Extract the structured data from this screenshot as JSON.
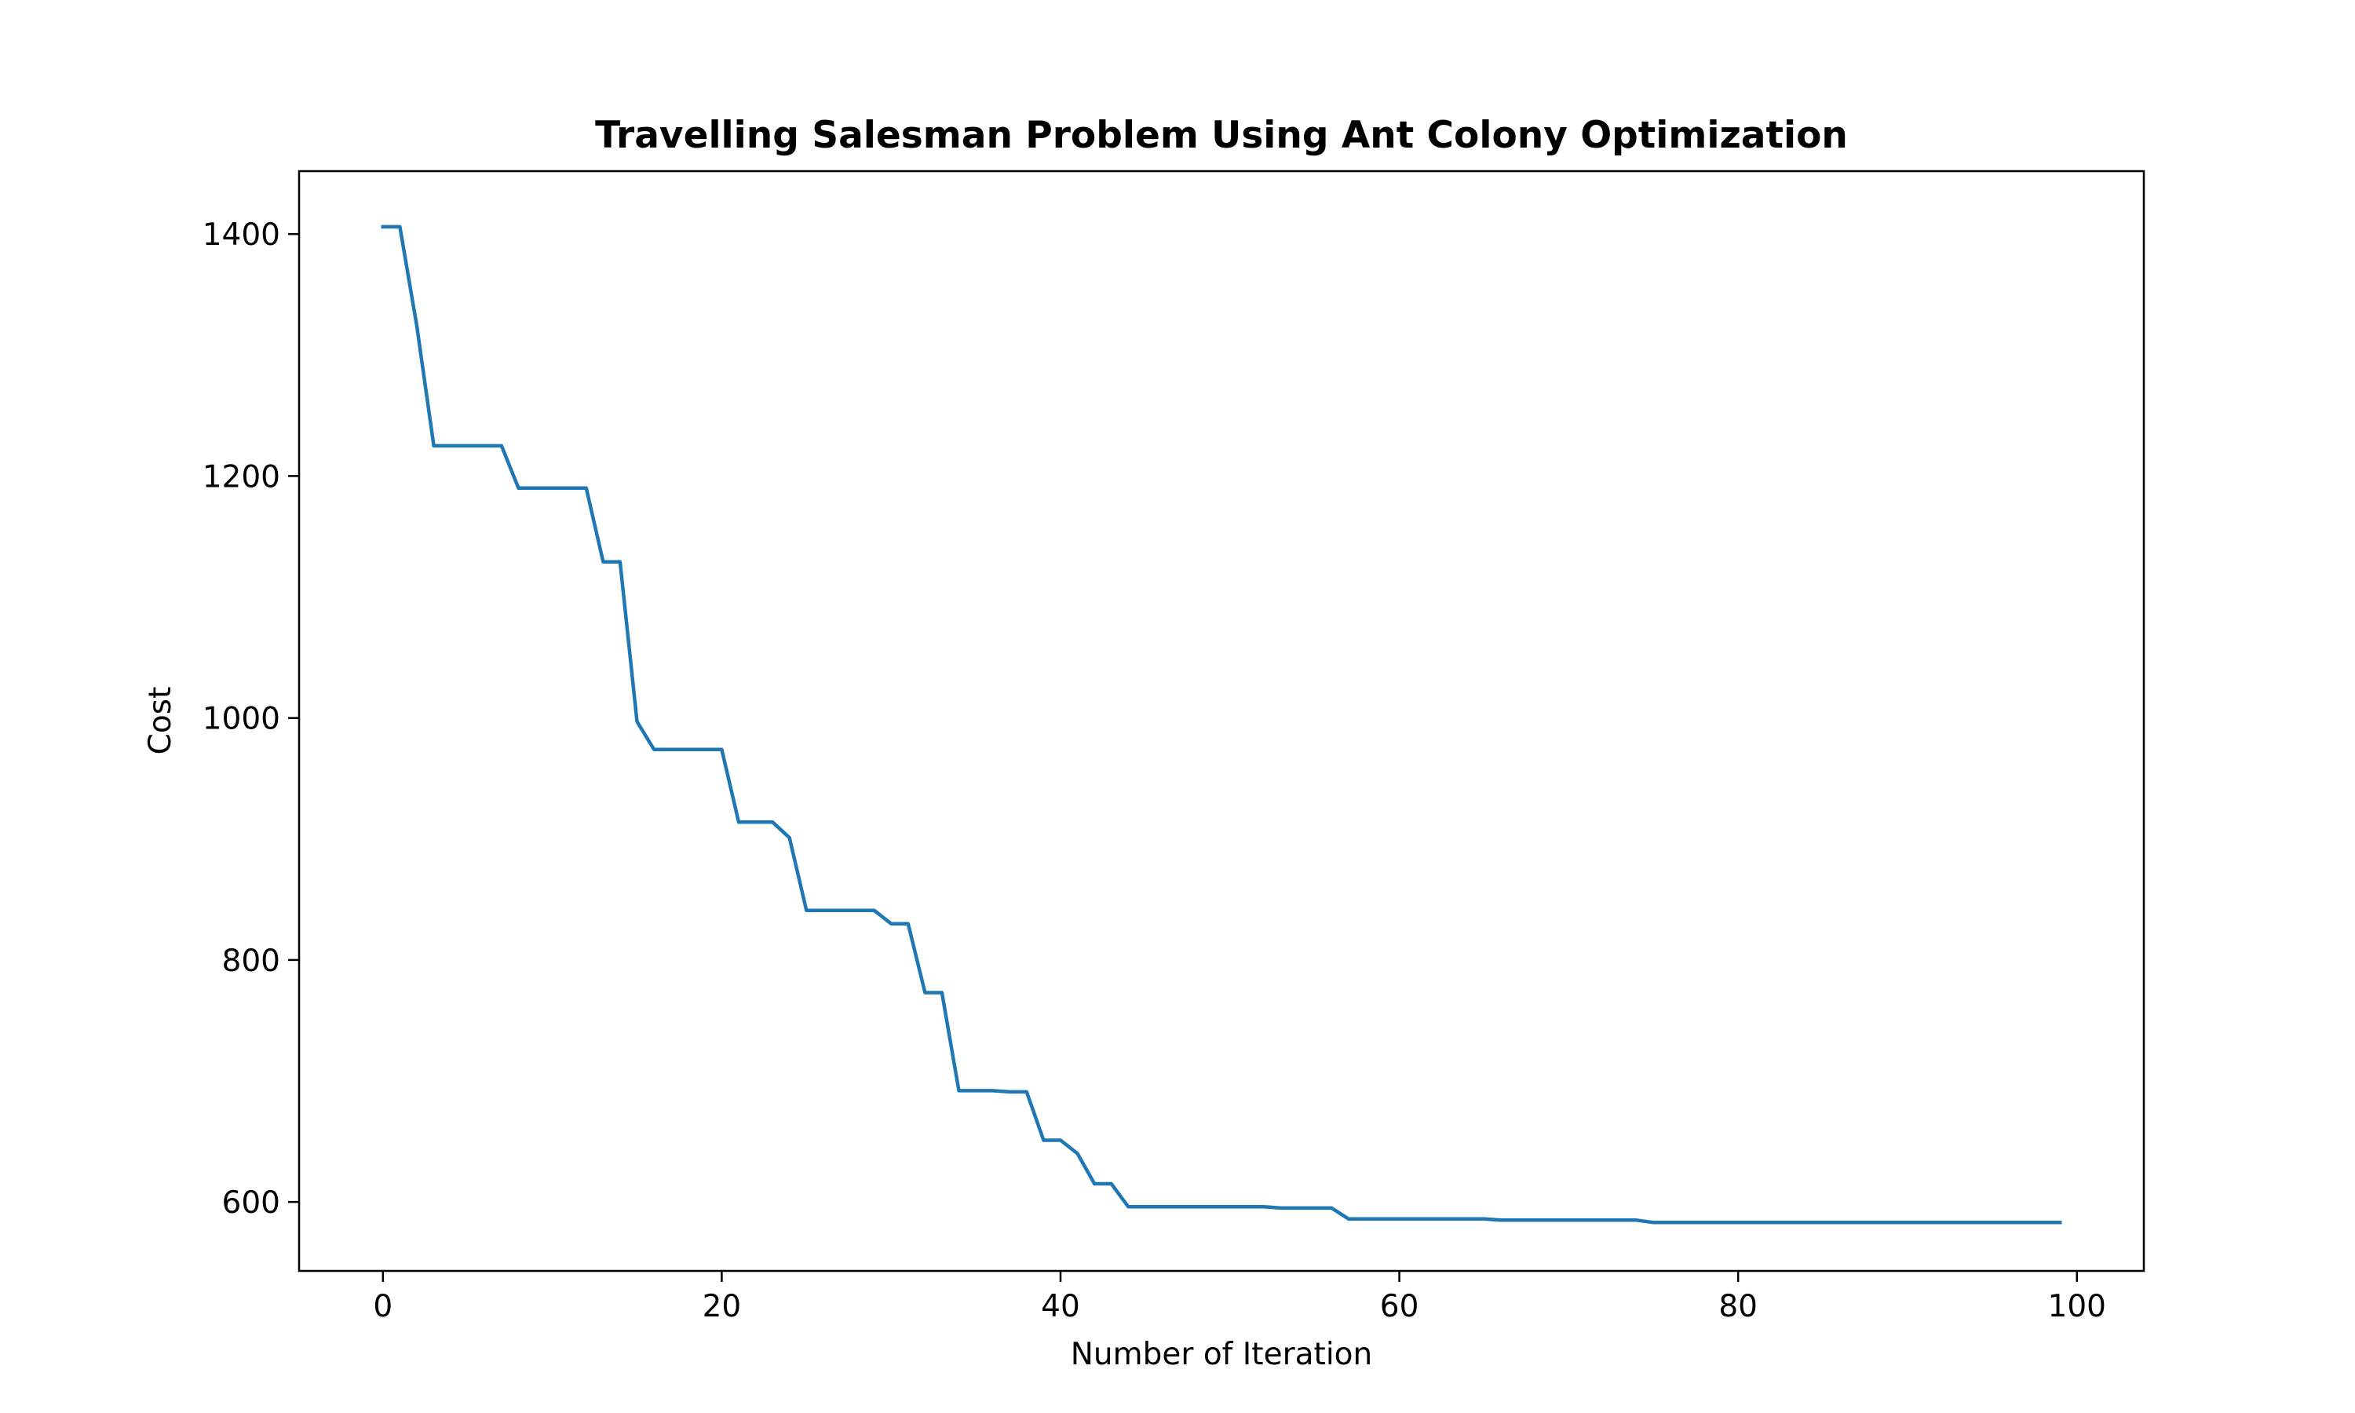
{
  "chart_data": {
    "type": "line",
    "title": "Travelling Salesman Problem Using Ant Colony Optimization",
    "xlabel": "Number of Iteration",
    "ylabel": "Cost",
    "xlim": [
      -4.95,
      103.95
    ],
    "ylim": [
      543,
      1452
    ],
    "xticks": [
      0,
      20,
      40,
      60,
      80,
      100
    ],
    "yticks": [
      600,
      800,
      1000,
      1200,
      1400
    ],
    "grid": false,
    "series_color": "#1f77b4",
    "x": [
      0,
      1,
      2,
      3,
      4,
      5,
      6,
      7,
      8,
      9,
      10,
      11,
      12,
      13,
      14,
      15,
      16,
      17,
      18,
      19,
      20,
      21,
      22,
      23,
      24,
      25,
      26,
      27,
      28,
      29,
      30,
      31,
      32,
      33,
      34,
      35,
      36,
      37,
      38,
      39,
      40,
      41,
      42,
      43,
      44,
      45,
      46,
      47,
      48,
      49,
      50,
      51,
      52,
      53,
      54,
      55,
      56,
      57,
      58,
      59,
      60,
      61,
      62,
      63,
      64,
      65,
      66,
      67,
      68,
      69,
      70,
      71,
      72,
      73,
      74,
      75,
      76,
      77,
      78,
      79,
      80,
      81,
      82,
      83,
      84,
      85,
      86,
      87,
      88,
      89,
      90,
      91,
      92,
      93,
      94,
      95,
      96,
      97,
      98,
      99
    ],
    "y": [
      1406,
      1406,
      1324,
      1225,
      1225,
      1225,
      1225,
      1225,
      1190,
      1190,
      1190,
      1190,
      1190,
      1129,
      1129,
      997,
      974,
      974,
      974,
      974,
      974,
      914,
      914,
      914,
      901,
      841,
      841,
      841,
      841,
      841,
      830,
      830,
      773,
      773,
      692,
      692,
      692,
      691,
      691,
      651,
      651,
      640,
      615,
      615,
      596,
      596,
      596,
      596,
      596,
      596,
      596,
      596,
      596,
      595,
      595,
      595,
      595,
      586,
      586,
      586,
      586,
      586,
      586,
      586,
      586,
      586,
      585,
      585,
      585,
      585,
      585,
      585,
      585,
      585,
      585,
      583,
      583,
      583,
      583,
      583,
      583,
      583,
      583,
      583,
      583,
      583,
      583,
      583,
      583,
      583,
      583,
      583,
      583,
      583,
      583,
      583,
      583,
      583,
      583,
      583
    ]
  }
}
